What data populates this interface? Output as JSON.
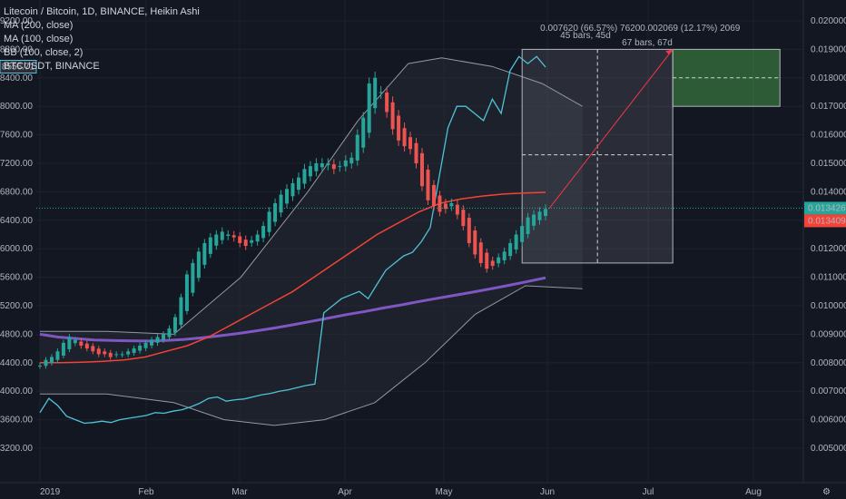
{
  "legend": [
    "Litecoin / Bitcoin, 1D, BINANCE, Heikin Ashi",
    "MA (200, close)",
    "MA (100, close)",
    "BB (100, close, 2)",
    "BTCUSDT, BINANCE"
  ],
  "colors": {
    "background": "#131722",
    "up": "#26a69a",
    "down": "#ef5350",
    "ma200": "#7e57c2",
    "ma100": "#f44336",
    "bb": "#9598a1",
    "btc": "#4fc3d7",
    "measure_fill": "#4caf50",
    "measure_target": "#f23645"
  },
  "chart_data": {
    "type": "candlestick",
    "x_labels": [
      "2019",
      "Feb",
      "Mar",
      "Apr",
      "May",
      "Jun",
      "Jul",
      "Aug"
    ],
    "left_axis": {
      "label": "BTCUSDT",
      "ticks": [
        "9200.00",
        "8800.00",
        "8400.00",
        "8000.00",
        "7600.00",
        "7200.00",
        "6800.00",
        "6400.00",
        "6000.00",
        "5600.00",
        "5200.00",
        "4800.00",
        "4400.00",
        "4000.00",
        "3600.00",
        "3200.00"
      ],
      "last_value": "8556.71"
    },
    "right_axis": {
      "label": "LTC/BTC",
      "ticks": [
        "0.020000",
        "0.019000",
        "0.018000",
        "0.017000",
        "0.016000",
        "0.015000",
        "0.014000",
        "0.013000",
        "0.012000",
        "0.011000",
        "0.010000",
        "0.009000",
        "0.008000",
        "0.007000",
        "0.006000",
        "0.005000"
      ],
      "last_value": "0.013426",
      "ma100_value": "0.013409"
    },
    "ltcbtc_close": [
      0.0079,
      0.0081,
      0.0082,
      0.0084,
      0.0087,
      0.0089,
      0.0088,
      0.0086,
      0.0085,
      0.0084,
      0.0083,
      0.0083,
      0.0082,
      0.0083,
      0.0083,
      0.0084,
      0.0085,
      0.0086,
      0.0087,
      0.0088,
      0.0089,
      0.009,
      0.0092,
      0.0096,
      0.0103,
      0.0111,
      0.0115,
      0.0119,
      0.0122,
      0.0124,
      0.0125,
      0.0126,
      0.0125,
      0.0124,
      0.0122,
      0.0121,
      0.0123,
      0.0125,
      0.0128,
      0.0133,
      0.0136,
      0.0139,
      0.0141,
      0.0143,
      0.0145,
      0.0148,
      0.0149,
      0.015,
      0.015,
      0.015,
      0.0148,
      0.0149,
      0.0151,
      0.0152,
      0.016,
      0.0166,
      0.0178,
      0.018,
      0.0175,
      0.0168,
      0.0162,
      0.0158,
      0.0156,
      0.0155,
      0.015,
      0.0142,
      0.0137,
      0.0135,
      0.0133,
      0.0134,
      0.0136,
      0.0132,
      0.0128,
      0.0122,
      0.0118,
      0.0115,
      0.0113,
      0.0114,
      0.0117,
      0.0119,
      0.0122,
      0.0125,
      0.0128,
      0.0131,
      0.0132,
      0.0133,
      0.0134
    ],
    "btcusdt": [
      3700,
      3900,
      3800,
      3650,
      3600,
      3550,
      3560,
      3580,
      3560,
      3600,
      3620,
      3640,
      3660,
      3700,
      3690,
      3720,
      3740,
      3780,
      3830,
      3900,
      3920,
      3860,
      3880,
      3890,
      3920,
      3950,
      3970,
      4000,
      4020,
      4050,
      4080,
      4100,
      5100,
      5200,
      5300,
      5350,
      5400,
      5300,
      5500,
      5700,
      5800,
      5900,
      5950,
      6100,
      6300,
      7000,
      7700,
      8000,
      8000,
      7900,
      7800,
      8100,
      7900,
      8500,
      8700,
      8600,
      8700,
      8550
    ],
    "ma200": [
      0.009,
      0.0089,
      0.00885,
      0.0088,
      0.00878,
      0.00877,
      0.00876,
      0.00878,
      0.00882,
      0.00888,
      0.00895,
      0.00903,
      0.00912,
      0.00922,
      0.00933,
      0.00945,
      0.00957,
      0.00969,
      0.0098,
      0.00992,
      0.01003,
      0.01015,
      0.01026,
      0.01037,
      0.01048,
      0.0106,
      0.01072,
      0.01085,
      0.01098
    ],
    "ma100": [
      0.008,
      0.008,
      0.00802,
      0.00805,
      0.0081,
      0.0082,
      0.0084,
      0.0086,
      0.0089,
      0.0093,
      0.0097,
      0.0101,
      0.0105,
      0.011,
      0.0115,
      0.012,
      0.0125,
      0.0129,
      0.0133,
      0.0136,
      0.01375,
      0.01385,
      0.01392,
      0.01396,
      0.01398
    ],
    "measure": {
      "label_line1": "0.007620 (66.57%) 76200.002069 (12.17%) 2069",
      "label_line2": "45 bars, 45d",
      "label_line3": "67 bars, 67d",
      "top": 0.019,
      "bottom": 0.0115,
      "target_top": 0.019,
      "target_bottom": 0.017
    }
  }
}
